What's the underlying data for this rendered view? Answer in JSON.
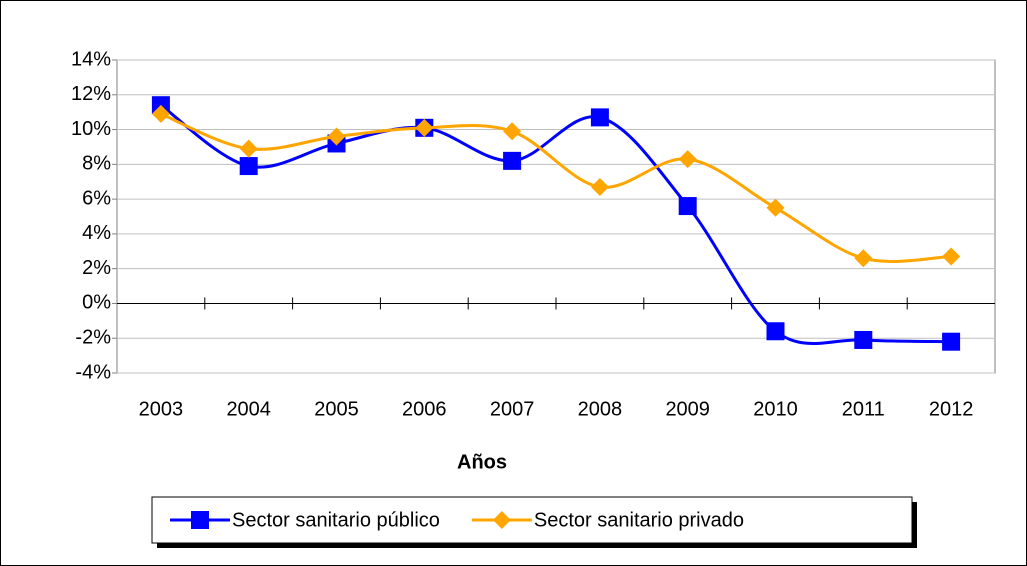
{
  "chart_data": {
    "type": "line",
    "x_label": "Años",
    "categories": [
      "2003",
      "2004",
      "2005",
      "2006",
      "2007",
      "2008",
      "2009",
      "2010",
      "2011",
      "2012"
    ],
    "series": [
      {
        "name": "Sector sanitario público",
        "color": "#0000ff",
        "marker": "square",
        "values": [
          11.4,
          7.9,
          9.2,
          10.1,
          8.2,
          10.7,
          5.6,
          -1.6,
          -2.1,
          -2.2
        ]
      },
      {
        "name": "Sector sanitario privado",
        "color": "#ffa500",
        "marker": "diamond",
        "values": [
          10.9,
          8.9,
          9.6,
          10.1,
          9.9,
          6.7,
          8.3,
          5.5,
          2.6,
          2.7
        ]
      }
    ],
    "ylim": [
      -4,
      14
    ],
    "yticks": [
      {
        "value": -4,
        "label": "-4%"
      },
      {
        "value": -2,
        "label": "-2%"
      },
      {
        "value": 0,
        "label": "0%"
      },
      {
        "value": 2,
        "label": "2%"
      },
      {
        "value": 4,
        "label": "4%"
      },
      {
        "value": 6,
        "label": "6%"
      },
      {
        "value": 8,
        "label": "8%"
      },
      {
        "value": 10,
        "label": "10%"
      },
      {
        "value": 12,
        "label": "12%"
      },
      {
        "value": 14,
        "label": "14%"
      }
    ],
    "grid": true,
    "smooth": true,
    "legend": "bottom"
  }
}
